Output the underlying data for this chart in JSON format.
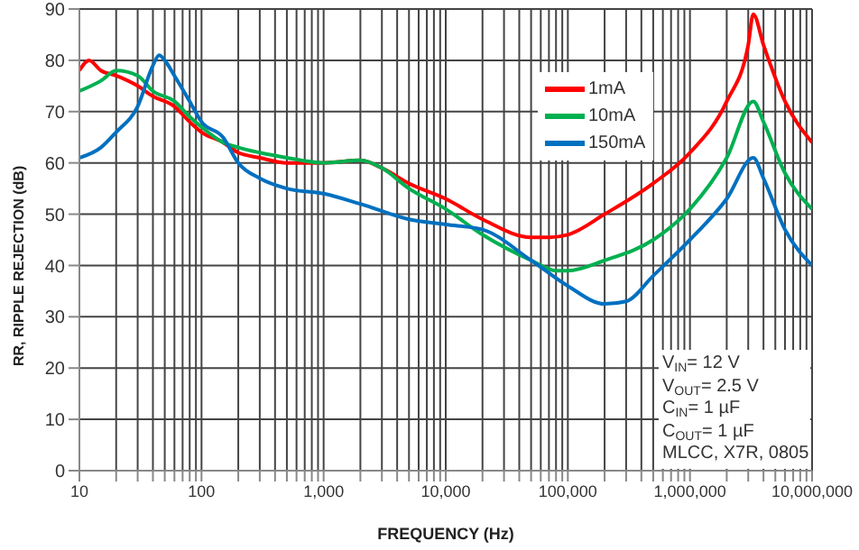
{
  "chart_data": {
    "type": "line",
    "xlabel": "FREQUENCY (Hz)",
    "ylabel": "RR, RIPPLE REJECTION (dB)",
    "log": "x",
    "grid": true,
    "legend": "top right",
    "xlim": [
      10,
      10000000
    ],
    "ylim": [
      0,
      90
    ],
    "yticks": [
      0,
      10,
      20,
      30,
      40,
      50,
      60,
      70,
      80,
      90
    ],
    "xticks": [
      10,
      {
        "value": 20,
        "label": null
      },
      {
        "value": 30,
        "label": null
      },
      {
        "value": 40,
        "label": null
      },
      {
        "value": 50,
        "label": null
      },
      {
        "value": 60,
        "label": null
      },
      {
        "value": 70,
        "label": null
      },
      {
        "value": 80,
        "label": null
      },
      {
        "value": 90,
        "label": null
      },
      100,
      {
        "value": 200,
        "label": null
      },
      {
        "value": 300,
        "label": null
      },
      {
        "value": 400,
        "label": null
      },
      {
        "value": 500,
        "label": null
      },
      {
        "value": 600,
        "label": null
      },
      {
        "value": 700,
        "label": null
      },
      {
        "value": 800,
        "label": null
      },
      {
        "value": 900,
        "label": null
      },
      {
        "value": 1000,
        "label": "1,000"
      },
      {
        "value": 2000,
        "label": null
      },
      {
        "value": 3000,
        "label": null
      },
      {
        "value": 4000,
        "label": null
      },
      {
        "value": 5000,
        "label": null
      },
      {
        "value": 6000,
        "label": null
      },
      {
        "value": 7000,
        "label": null
      },
      {
        "value": 8000,
        "label": null
      },
      {
        "value": 9000,
        "label": null
      },
      {
        "value": 10000,
        "label": "10,000"
      },
      {
        "value": 20000,
        "label": null
      },
      {
        "value": 30000,
        "label": null
      },
      {
        "value": 40000,
        "label": null
      },
      {
        "value": 50000,
        "label": null
      },
      {
        "value": 60000,
        "label": null
      },
      {
        "value": 70000,
        "label": null
      },
      {
        "value": 80000,
        "label": null
      },
      {
        "value": 90000,
        "label": null
      },
      {
        "value": 100000,
        "label": "100,000"
      },
      {
        "value": 200000,
        "label": null
      },
      {
        "value": 300000,
        "label": null
      },
      {
        "value": 400000,
        "label": null
      },
      {
        "value": 500000,
        "label": null
      },
      {
        "value": 600000,
        "label": null
      },
      {
        "value": 700000,
        "label": null
      },
      {
        "value": 800000,
        "label": null
      },
      {
        "value": 900000,
        "label": null
      },
      {
        "value": 1000000,
        "label": "1,000,000"
      },
      {
        "value": 2000000,
        "label": null
      },
      {
        "value": 3000000,
        "label": null
      },
      {
        "value": 4000000,
        "label": null
      },
      {
        "value": 5000000,
        "label": null
      },
      {
        "value": 6000000,
        "label": null
      },
      {
        "value": 7000000,
        "label": null
      },
      {
        "value": 8000000,
        "label": null
      },
      {
        "value": 9000000,
        "label": null
      },
      {
        "value": 10000000,
        "label": "10,000,000"
      }
    ],
    "annotations": [
      "V$_{IN}$= 12 V",
      "V$_{OUT}$= 2.5 V",
      "C$_{IN}$= 1 µF",
      "C$_{OUT}$= 1 µF",
      "MLCC, X7R, 0805"
    ],
    "series": [
      {
        "name": "1mA",
        "color": "#ff0000",
        "x": [
          10,
          12,
          15,
          20,
          30,
          40,
          60,
          80,
          100,
          150,
          200,
          300,
          500,
          1000,
          2000,
          3000,
          5000,
          10000,
          20000,
          50000,
          70000,
          100000,
          200000,
          500000,
          1000000,
          2000000,
          3000000,
          3300000,
          4000000,
          6000000,
          10000000
        ],
        "values": [
          78,
          80,
          78,
          77,
          75,
          73,
          71,
          68,
          66,
          64,
          62,
          61,
          60,
          60,
          60.5,
          59,
          56,
          53,
          49,
          45.5,
          45.5,
          46,
          50,
          56,
          62,
          72,
          83,
          89,
          83,
          72,
          64
        ]
      },
      {
        "name": "10mA",
        "color": "#00b050",
        "x": [
          10,
          15,
          20,
          30,
          40,
          60,
          80,
          100,
          150,
          200,
          300,
          500,
          1000,
          2000,
          3000,
          5000,
          10000,
          20000,
          50000,
          80000,
          100000,
          200000,
          500000,
          1000000,
          2000000,
          3300000,
          4000000,
          6000000,
          10000000
        ],
        "values": [
          74,
          76,
          78,
          77,
          74,
          72,
          69,
          67,
          64,
          63,
          62,
          61,
          60,
          60.5,
          59,
          55,
          51,
          46,
          41,
          39,
          39,
          41,
          45,
          51,
          61,
          72,
          68,
          58,
          51
        ]
      },
      {
        "name": "150mA",
        "color": "#0070c0",
        "x": [
          10,
          15,
          20,
          30,
          40,
          45,
          50,
          60,
          80,
          100,
          150,
          200,
          300,
          500,
          1000,
          2000,
          5000,
          10000,
          20000,
          50000,
          100000,
          200000,
          300000,
          500000,
          1000000,
          2000000,
          3300000,
          4000000,
          6000000,
          10000000
        ],
        "values": [
          61,
          63,
          66,
          71,
          79,
          81,
          80,
          77,
          72,
          68,
          65,
          60,
          57,
          55,
          54,
          52,
          49,
          48,
          47,
          41,
          36,
          32.5,
          33,
          38,
          45,
          53,
          61,
          57,
          47,
          40
        ]
      }
    ]
  }
}
